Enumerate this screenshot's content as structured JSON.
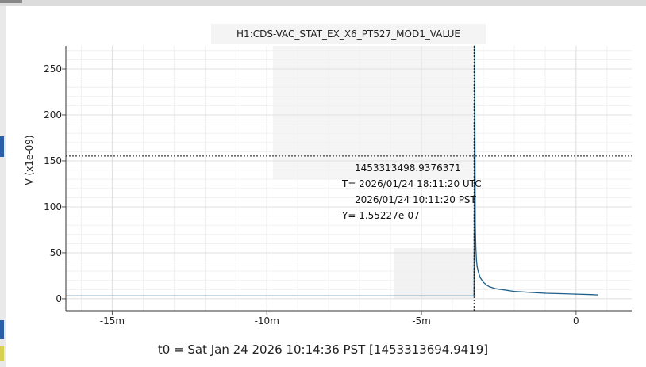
{
  "chart_data": {
    "type": "line",
    "title": "H1:CDS-VAC_STAT_EX_X6_PT527_MOD1_VALUE",
    "ylabel": "V (x1e-09)",
    "xlabel": "t0 = Sat Jan 24 2026 10:14:36 PST [1453313694.9419]",
    "xlim": [
      -16.5,
      1.8
    ],
    "ylim": [
      -13,
      275
    ],
    "x_ticks": [
      {
        "v": -15,
        "label": "-15m"
      },
      {
        "v": -10,
        "label": "-10m"
      },
      {
        "v": -5,
        "label": "-5m"
      },
      {
        "v": 0,
        "label": "0"
      }
    ],
    "y_ticks": [
      {
        "v": 0,
        "label": "0"
      },
      {
        "v": 50,
        "label": "50"
      },
      {
        "v": 100,
        "label": "100"
      },
      {
        "v": 150,
        "label": "150"
      },
      {
        "v": 200,
        "label": "200"
      },
      {
        "v": 250,
        "label": "250"
      }
    ],
    "grid": true,
    "series": [
      {
        "color": "#1f5f8b",
        "x": [
          -16.5,
          -3.3,
          -3.28,
          -3.26,
          -3.24,
          -3.22,
          -3.2,
          -3.15,
          -3.1,
          -3.0,
          -2.9,
          -2.8,
          -2.6,
          -2.4,
          -2.2,
          -2.0,
          -1.5,
          -1.0,
          -0.5,
          0.0,
          0.5,
          0.7
        ],
        "y": [
          3,
          3,
          275,
          80,
          55,
          42,
          35,
          28,
          23,
          18,
          15,
          13,
          11,
          10,
          9,
          8,
          7,
          6,
          5.5,
          5,
          4.5,
          4.2
        ]
      }
    ],
    "cursor": {
      "x": -3.3,
      "y": 155.2,
      "lines": [
        "1453313498.9376371",
        "T= 2026/01/24 18:11:20 UTC",
        "2026/01/24 10:11:20 PST",
        "Y= 1.55227e-07"
      ]
    }
  }
}
